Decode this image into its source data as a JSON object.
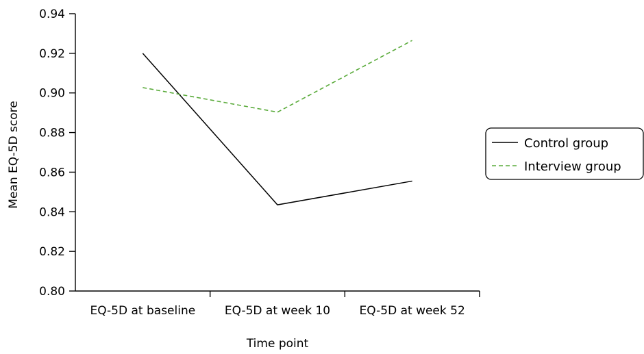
{
  "chart_data": {
    "type": "line",
    "title": "",
    "xlabel": "Time point",
    "ylabel": "Mean EQ-5D score",
    "categories": [
      "EQ-5D at baseline",
      "EQ-5D at week 10",
      "EQ-5D at week 52"
    ],
    "ylim": [
      0.8,
      0.94
    ],
    "yticks": [
      "0.80",
      "0.82",
      "0.84",
      "0.86",
      "0.88",
      "0.90",
      "0.92",
      "0.94"
    ],
    "grid": false,
    "legend_position": "right",
    "series": [
      {
        "name": "Control group",
        "values": [
          0.92,
          0.8435,
          0.8555
        ],
        "color": "#000000",
        "dash": "solid"
      },
      {
        "name": "Interview group",
        "values": [
          0.9027,
          0.8903,
          0.9265
        ],
        "color": "#5aab3b",
        "dash": "dashed"
      }
    ]
  }
}
